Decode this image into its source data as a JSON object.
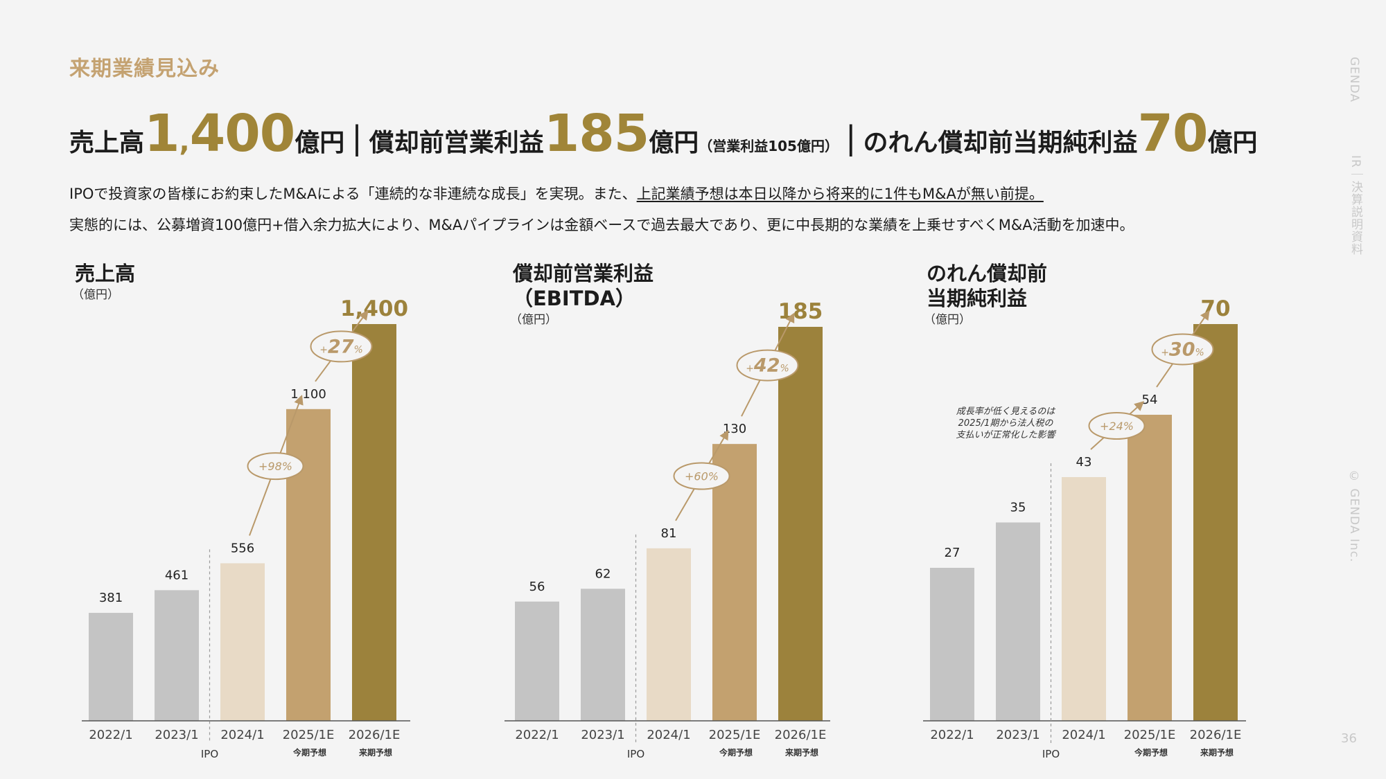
{
  "page": {
    "section_title": "来期業績見込み",
    "headline": {
      "sales_label": "売上高",
      "sales_value_a": "1",
      "sales_comma": ",",
      "sales_value_b": "400",
      "unit": "億円",
      "separator": "|",
      "ebitda_label": "償却前営業利益",
      "ebitda_value": "185",
      "ebitda_note": "（営業利益105億円）",
      "net_label": "のれん償却前当期純利益",
      "net_value": "70"
    },
    "desc_line1_a": "IPOで投資家の皆様にお約束したM&Aによる「連続的な非連続な成長」を実現。また、",
    "desc_line1_b": "上記業績予想は本日以降から将来的に1件もM&Aが無い前提。",
    "desc_line2": "実態的には、公募増資100億円+借入余力拡大により、M&Aパイプラインは金額ベースで過去最大であり、更に中長期的な業績を上乗せすべくM&A活動を加速中。",
    "side_brand": "GENDA",
    "side_doc": "IR｜決算説明資料",
    "side_copyright": "© GENDA Inc.",
    "page_number": "36"
  },
  "chart_data": [
    {
      "type": "bar",
      "title_lines": [
        "売上高"
      ],
      "unit_label": "（億円）",
      "categories": [
        "2022/1",
        "2023/1",
        "2024/1",
        "2025/1E",
        "2026/1E"
      ],
      "sub_labels": [
        "",
        "",
        "",
        "今期予想",
        "来期予想"
      ],
      "values": [
        381,
        461,
        556,
        1100,
        1400
      ],
      "value_labels": [
        "381",
        "461",
        "556",
        "1,100",
        "1,400"
      ],
      "ylim": [
        0,
        1400
      ],
      "ipo_label": "IPO",
      "growth": [
        {
          "from": 2,
          "to": 3,
          "label_sign": "+",
          "label_num": "98",
          "label_pct": "%",
          "emph": false
        },
        {
          "from": 3,
          "to": 4,
          "label_sign": "+",
          "label_num": "27",
          "label_pct": "%",
          "emph": true
        }
      ],
      "colors": [
        "#c4c4c4",
        "#c4c4c4",
        "#e8dac6",
        "#c3a16f",
        "#9c823c"
      ]
    },
    {
      "type": "bar",
      "title_lines": [
        "償却前営業利益",
        "（EBITDA）"
      ],
      "unit_label": "（億円）",
      "categories": [
        "2022/1",
        "2023/1",
        "2024/1",
        "2025/1E",
        "2026/1E"
      ],
      "sub_labels": [
        "",
        "",
        "",
        "今期予想",
        "来期予想"
      ],
      "values": [
        56,
        62,
        81,
        130,
        185
      ],
      "value_labels": [
        "56",
        "62",
        "81",
        "130",
        "185"
      ],
      "ylim": [
        0,
        185
      ],
      "ipo_label": "IPO",
      "growth": [
        {
          "from": 2,
          "to": 3,
          "label_sign": "+",
          "label_num": "60",
          "label_pct": "%",
          "emph": false
        },
        {
          "from": 3,
          "to": 4,
          "label_sign": "+",
          "label_num": "42",
          "label_pct": "%",
          "emph": true
        }
      ],
      "colors": [
        "#c4c4c4",
        "#c4c4c4",
        "#e8dac6",
        "#c3a16f",
        "#9c823c"
      ]
    },
    {
      "type": "bar",
      "title_lines": [
        "のれん償却前",
        "当期純利益"
      ],
      "unit_label": "（億円）",
      "categories": [
        "2022/1",
        "2023/1",
        "2024/1",
        "2025/1E",
        "2026/1E"
      ],
      "sub_labels": [
        "",
        "",
        "",
        "今期予想",
        "来期予想"
      ],
      "values": [
        27,
        35,
        43,
        54,
        70
      ],
      "value_labels": [
        "27",
        "35",
        "43",
        "54",
        "70"
      ],
      "ylim": [
        0,
        70
      ],
      "ipo_label": "IPO",
      "growth": [
        {
          "from": 2,
          "to": 3,
          "label_sign": "+",
          "label_num": "24",
          "label_pct": "%",
          "emph": false
        },
        {
          "from": 3,
          "to": 4,
          "label_sign": "+",
          "label_num": "30",
          "label_pct": "%",
          "emph": true
        }
      ],
      "annotation": [
        "成長率が低く見えるのは",
        "2025/1期から法人税の",
        "支払いが正常化した影響"
      ],
      "colors": [
        "#c4c4c4",
        "#c4c4c4",
        "#e8dac6",
        "#c3a16f",
        "#9c823c"
      ]
    }
  ]
}
